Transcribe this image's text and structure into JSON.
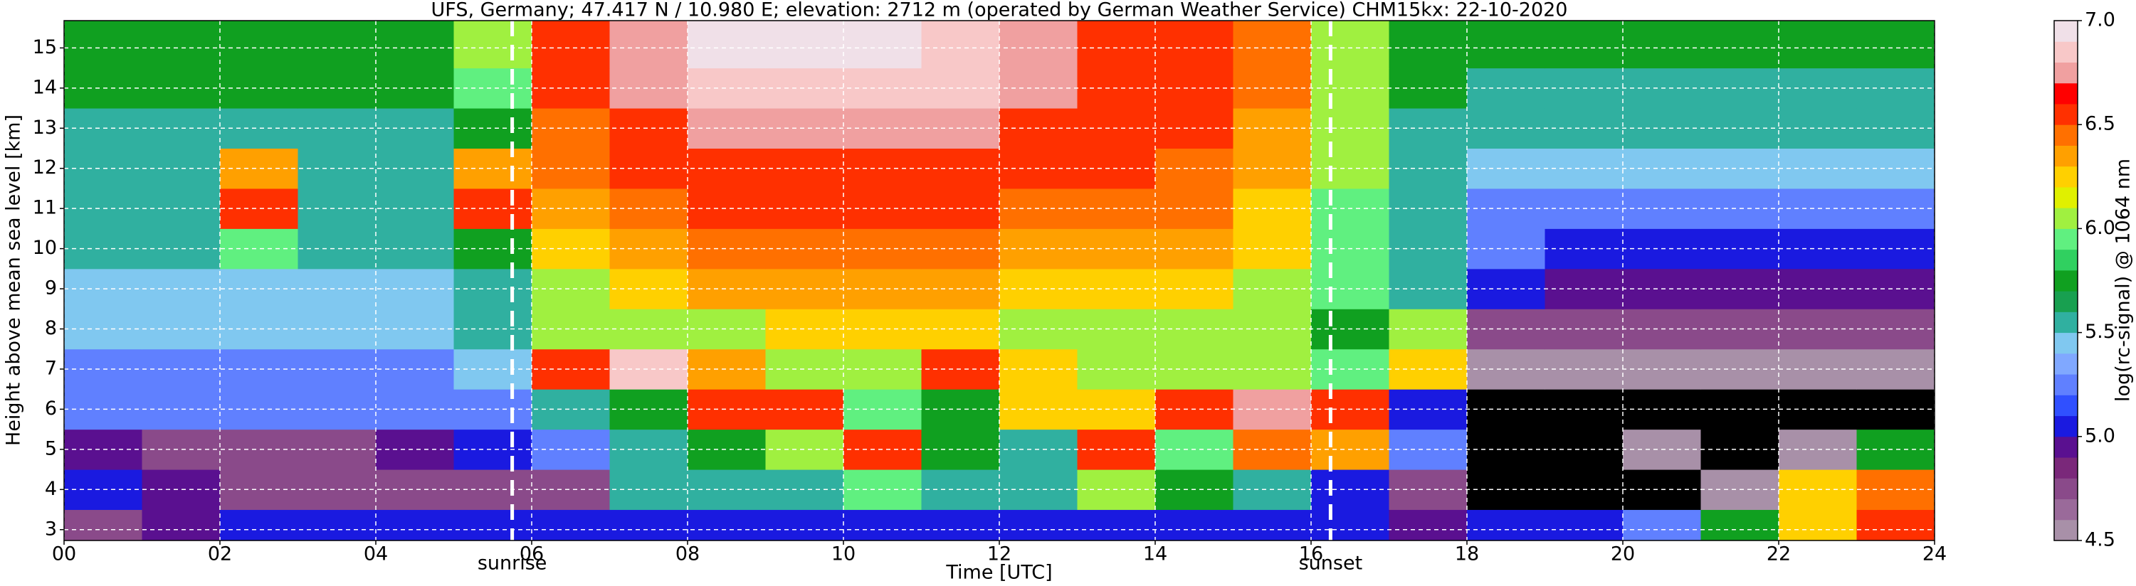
{
  "chart_data": {
    "type": "heatmap",
    "title": "UFS, Germany; 47.417 N / 10.980 E; elevation: 2712 m  (operated by German Weather Service)    CHM15kx: 22-10-2020",
    "x_label": "Time [UTC]",
    "y_label": "Height above mean sea level [km]",
    "colorbar_label": "log(rc-signal) @ 1064 nm",
    "xlim": [
      0,
      24
    ],
    "xticks": [
      {
        "value": 0,
        "label": "00"
      },
      {
        "value": 2,
        "label": "02"
      },
      {
        "value": 4,
        "label": "04"
      },
      {
        "value": 6,
        "label": "06"
      },
      {
        "value": 8,
        "label": "08"
      },
      {
        "value": 10,
        "label": "10"
      },
      {
        "value": 12,
        "label": "12"
      },
      {
        "value": 14,
        "label": "14"
      },
      {
        "value": 16,
        "label": "16"
      },
      {
        "value": 18,
        "label": "18"
      },
      {
        "value": 20,
        "label": "20"
      },
      {
        "value": 22,
        "label": "22"
      },
      {
        "value": 24,
        "label": "24"
      }
    ],
    "ylim": [
      2.73,
      15.68
    ],
    "yticks": [
      3,
      4,
      5,
      6,
      7,
      8,
      9,
      10,
      11,
      12,
      13,
      14,
      15
    ],
    "grid": true,
    "clim": [
      4.5,
      7.0
    ],
    "cticks": [
      {
        "value": 4.5,
        "label": "4.5"
      },
      {
        "value": 5,
        "label": "5.0"
      },
      {
        "value": 5.5,
        "label": "5.5"
      },
      {
        "value": 6,
        "label": "6.0"
      },
      {
        "value": 6.5,
        "label": "6.5"
      },
      {
        "value": 7,
        "label": "7.0"
      }
    ],
    "colormap": [
      "#a890a8",
      "#9a6a9a",
      "#8a4a8a",
      "#7a287a",
      "#5a1090",
      "#1a1ae0",
      "#3050ff",
      "#6080ff",
      "#80a8ff",
      "#80c8f0",
      "#30b0a0",
      "#18a050",
      "#10a020",
      "#30d060",
      "#60f080",
      "#a0f040",
      "#e0f000",
      "#ffd000",
      "#ffa000",
      "#ff7000",
      "#ff3000",
      "#ff0000",
      "#f0a0a0",
      "#f8c8c8",
      "#f0e0e8"
    ],
    "under_color": "#000000",
    "xbins": [
      0,
      1,
      2,
      3,
      4,
      5,
      6,
      7,
      8,
      9,
      10,
      11,
      12,
      13,
      14,
      15,
      16,
      17,
      18,
      19,
      20,
      21,
      22,
      23,
      24
    ],
    "ybins": [
      2.73,
      3.5,
      4.5,
      5.5,
      6.5,
      7.5,
      8.5,
      9.5,
      10.5,
      11.5,
      12.5,
      13.5,
      14.5,
      15.68
    ],
    "z": [
      [
        4.8,
        4.9,
        5.0,
        5.0,
        5.0,
        5.0,
        5.0,
        5.0,
        5.0,
        5.0,
        5.0,
        5.0,
        5.0,
        5.0,
        5.0,
        5.0,
        5.0,
        4.9,
        5.1,
        5.1,
        5.2,
        5.8,
        6.2,
        6.5
      ],
      [
        5.0,
        4.9,
        4.8,
        4.8,
        4.8,
        4.7,
        4.8,
        5.5,
        5.5,
        5.6,
        5.9,
        5.6,
        5.6,
        6.0,
        5.7,
        5.6,
        5.0,
        4.8,
        4.4,
        4.3,
        4.4,
        4.5,
        6.2,
        6.4
      ],
      [
        4.9,
        4.8,
        4.8,
        4.8,
        4.9,
        5.0,
        5.3,
        5.6,
        5.7,
        6.1,
        6.6,
        5.8,
        5.6,
        6.5,
        5.9,
        6.4,
        6.3,
        5.2,
        4.3,
        4.2,
        4.5,
        4.3,
        4.6,
        5.8
      ],
      [
        5.2,
        5.2,
        5.2,
        5.2,
        5.2,
        5.3,
        5.5,
        5.8,
        6.6,
        6.6,
        5.9,
        5.8,
        6.2,
        6.2,
        6.6,
        6.7,
        6.5,
        5.0,
        4.3,
        4.3,
        4.3,
        4.3,
        4.3,
        4.3
      ],
      [
        5.3,
        5.3,
        5.3,
        5.3,
        5.3,
        5.4,
        6.6,
        6.8,
        6.3,
        6.0,
        6.0,
        6.5,
        6.2,
        6.0,
        6.0,
        6.0,
        5.9,
        6.2,
        4.6,
        4.5,
        4.5,
        4.5,
        4.5,
        4.5
      ],
      [
        5.4,
        5.4,
        5.4,
        5.4,
        5.4,
        5.5,
        6.0,
        6.1,
        6.1,
        6.2,
        6.2,
        6.2,
        6.1,
        6.1,
        6.1,
        6.0,
        5.8,
        6.0,
        4.8,
        4.7,
        4.7,
        4.7,
        4.7,
        4.7
      ],
      [
        5.4,
        5.4,
        5.4,
        5.4,
        5.4,
        5.5,
        6.1,
        6.2,
        6.3,
        6.3,
        6.3,
        6.3,
        6.2,
        6.2,
        6.2,
        6.1,
        5.9,
        5.5,
        5.0,
        4.9,
        4.9,
        4.9,
        4.9,
        4.9
      ],
      [
        5.5,
        5.5,
        5.9,
        5.5,
        5.5,
        5.8,
        6.2,
        6.3,
        6.4,
        6.4,
        6.4,
        6.4,
        6.3,
        6.3,
        6.3,
        6.2,
        5.9,
        5.6,
        5.2,
        5.1,
        5.1,
        5.1,
        5.1,
        5.1
      ],
      [
        5.5,
        5.5,
        6.5,
        5.6,
        5.5,
        6.6,
        6.3,
        6.4,
        6.5,
        6.5,
        6.5,
        6.5,
        6.4,
        6.4,
        6.4,
        6.2,
        5.9,
        5.6,
        5.3,
        5.3,
        5.3,
        5.3,
        5.3,
        5.3
      ],
      [
        5.5,
        5.5,
        6.3,
        5.5,
        5.5,
        6.3,
        6.4,
        6.5,
        6.6,
        6.6,
        6.6,
        6.6,
        6.5,
        6.5,
        6.4,
        6.3,
        6.0,
        5.6,
        5.4,
        5.4,
        5.4,
        5.4,
        5.4,
        5.4
      ],
      [
        5.6,
        5.6,
        5.6,
        5.6,
        5.6,
        5.8,
        6.4,
        6.6,
        6.7,
        6.7,
        6.7,
        6.7,
        6.6,
        6.5,
        6.5,
        6.3,
        6.0,
        5.6,
        5.5,
        5.5,
        5.5,
        5.5,
        5.5,
        5.5
      ],
      [
        5.7,
        5.7,
        5.7,
        5.7,
        5.7,
        5.9,
        6.5,
        6.7,
        6.8,
        6.8,
        6.8,
        6.8,
        6.7,
        6.6,
        6.5,
        6.4,
        6.1,
        5.7,
        5.6,
        5.6,
        5.6,
        5.6,
        5.6,
        5.6
      ],
      [
        5.8,
        5.8,
        5.8,
        5.8,
        5.8,
        6.0,
        6.5,
        6.7,
        6.9,
        6.9,
        6.9,
        6.8,
        6.7,
        6.6,
        6.6,
        6.4,
        6.1,
        5.8,
        5.7,
        5.7,
        5.7,
        5.7,
        5.7,
        5.7
      ]
    ],
    "annotations": [
      {
        "text": "sunrise",
        "x": 5.75
      },
      {
        "text": "sunset",
        "x": 16.25
      }
    ]
  }
}
